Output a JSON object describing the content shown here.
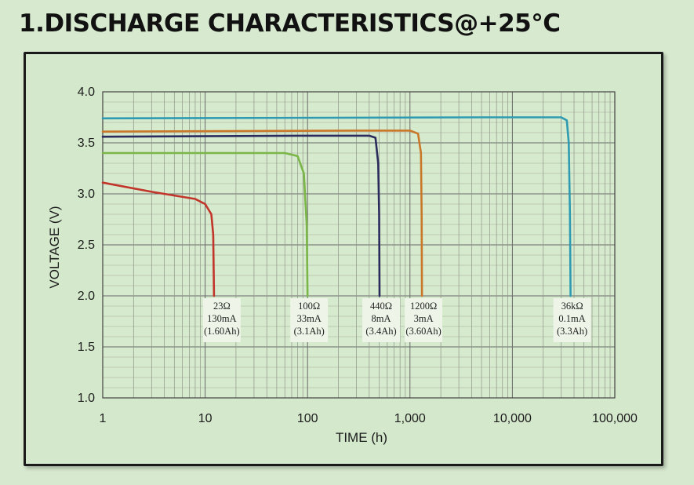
{
  "page_title": "1.DISCHARGE CHARACTERISTICS@+25°C",
  "chart_data": {
    "type": "line",
    "title": "",
    "xlabel": "TIME (h)",
    "ylabel": "VOLTAGE (V)",
    "xscale": "log",
    "xlim": [
      1,
      100000
    ],
    "ylim": [
      1.0,
      4.0
    ],
    "grid": true,
    "x_tick_labels": [
      "1",
      "10",
      "100",
      "1,000",
      "10,000",
      "100,000"
    ],
    "y_tick_labels": [
      "1.0",
      "1.5",
      "2.0",
      "2.5",
      "3.0",
      "3.5",
      "4.0"
    ],
    "series": [
      {
        "color": "#c2352b",
        "points": [
          [
            1,
            3.11
          ],
          [
            3,
            3.02
          ],
          [
            8,
            2.95
          ],
          [
            10,
            2.9
          ],
          [
            11.5,
            2.8
          ],
          [
            12,
            2.6
          ],
          [
            12.2,
            2.0
          ]
        ],
        "annotation": [
          "23Ω",
          "130mA",
          "(1.60Ah)"
        ]
      },
      {
        "color": "#7ab648",
        "points": [
          [
            1,
            3.4
          ],
          [
            20,
            3.4
          ],
          [
            60,
            3.4
          ],
          [
            80,
            3.37
          ],
          [
            92,
            3.2
          ],
          [
            98,
            2.7
          ],
          [
            100,
            2.0
          ]
        ],
        "annotation": [
          "100Ω",
          "33mA",
          "(3.1Ah)"
        ]
      },
      {
        "color": "#2b2b5e",
        "points": [
          [
            1,
            3.56
          ],
          [
            100,
            3.57
          ],
          [
            400,
            3.57
          ],
          [
            460,
            3.55
          ],
          [
            490,
            3.3
          ],
          [
            500,
            2.8
          ],
          [
            505,
            2.0
          ]
        ],
        "annotation": [
          "440Ω",
          "8mA",
          "(3.4Ah)"
        ]
      },
      {
        "color": "#c9782a",
        "points": [
          [
            1,
            3.61
          ],
          [
            300,
            3.62
          ],
          [
            1000,
            3.62
          ],
          [
            1200,
            3.59
          ],
          [
            1280,
            3.4
          ],
          [
            1300,
            2.8
          ],
          [
            1310,
            2.0
          ]
        ],
        "annotation": [
          "1200Ω",
          "3mA",
          "(3.60Ah)"
        ]
      },
      {
        "color": "#2e9bb2",
        "points": [
          [
            1,
            3.74
          ],
          [
            5000,
            3.75
          ],
          [
            30000,
            3.75
          ],
          [
            34000,
            3.72
          ],
          [
            35500,
            3.5
          ],
          [
            36500,
            2.8
          ],
          [
            37000,
            2.0
          ]
        ],
        "annotation": [
          "36kΩ",
          "0.1mA",
          "(3.3Ah)"
        ]
      }
    ]
  }
}
